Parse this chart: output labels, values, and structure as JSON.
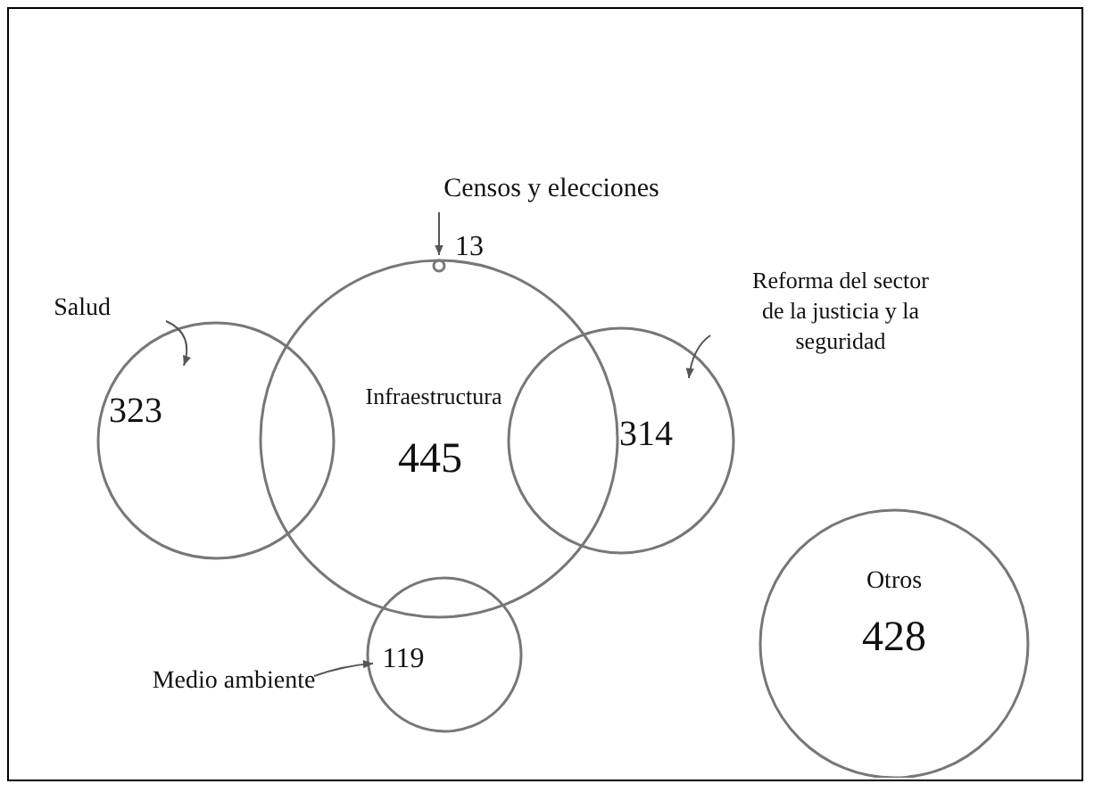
{
  "chart_data": {
    "type": "other",
    "categories": [
      "Infraestructura",
      "Salud",
      "Reforma del sector de la justicia y la seguridad",
      "Censos y elecciones",
      "Medio ambiente",
      "Otros"
    ],
    "values": [
      445,
      323,
      314,
      13,
      119,
      428
    ],
    "data_labels": true
  }
}
